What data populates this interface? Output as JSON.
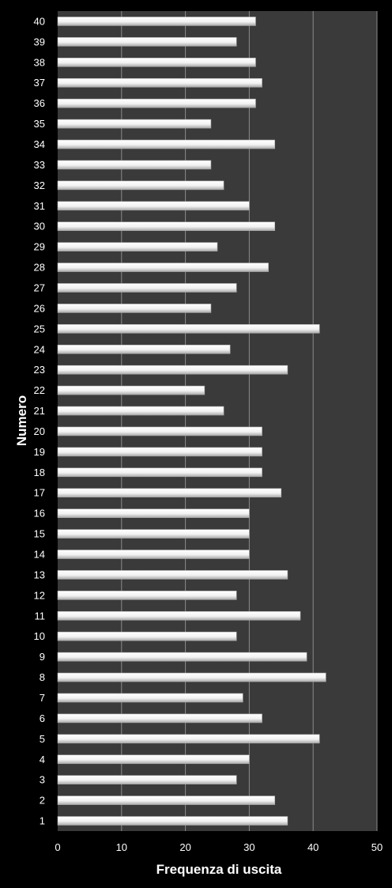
{
  "chart_data": {
    "type": "bar",
    "orientation": "horizontal",
    "title": "",
    "xlabel": "Frequenza di uscita",
    "ylabel": "Numero",
    "xlim": [
      0,
      50
    ],
    "x_ticks": [
      0,
      10,
      20,
      30,
      40,
      50
    ],
    "grid": true,
    "legend": "none",
    "categories": [
      "1",
      "2",
      "3",
      "4",
      "5",
      "6",
      "7",
      "8",
      "9",
      "10",
      "11",
      "12",
      "13",
      "14",
      "15",
      "16",
      "17",
      "18",
      "19",
      "20",
      "21",
      "22",
      "23",
      "24",
      "25",
      "26",
      "27",
      "28",
      "29",
      "30",
      "31",
      "32",
      "33",
      "34",
      "35",
      "36",
      "37",
      "38",
      "39",
      "40"
    ],
    "values": [
      36,
      34,
      28,
      30,
      41,
      32,
      29,
      42,
      39,
      28,
      38,
      28,
      36,
      30,
      30,
      30,
      35,
      32,
      32,
      32,
      26,
      23,
      36,
      27,
      41,
      24,
      28,
      33,
      25,
      34,
      30,
      26,
      24,
      34,
      24,
      31,
      32,
      31,
      28,
      31
    ]
  },
  "colors": {
    "background": "#000000",
    "plot_area": "#3a3a3a",
    "gridline": "#8a8a8a",
    "bar_fill": "#f2f2f2",
    "bar_shade": "#a8a8a8",
    "text": "#ffffff"
  }
}
